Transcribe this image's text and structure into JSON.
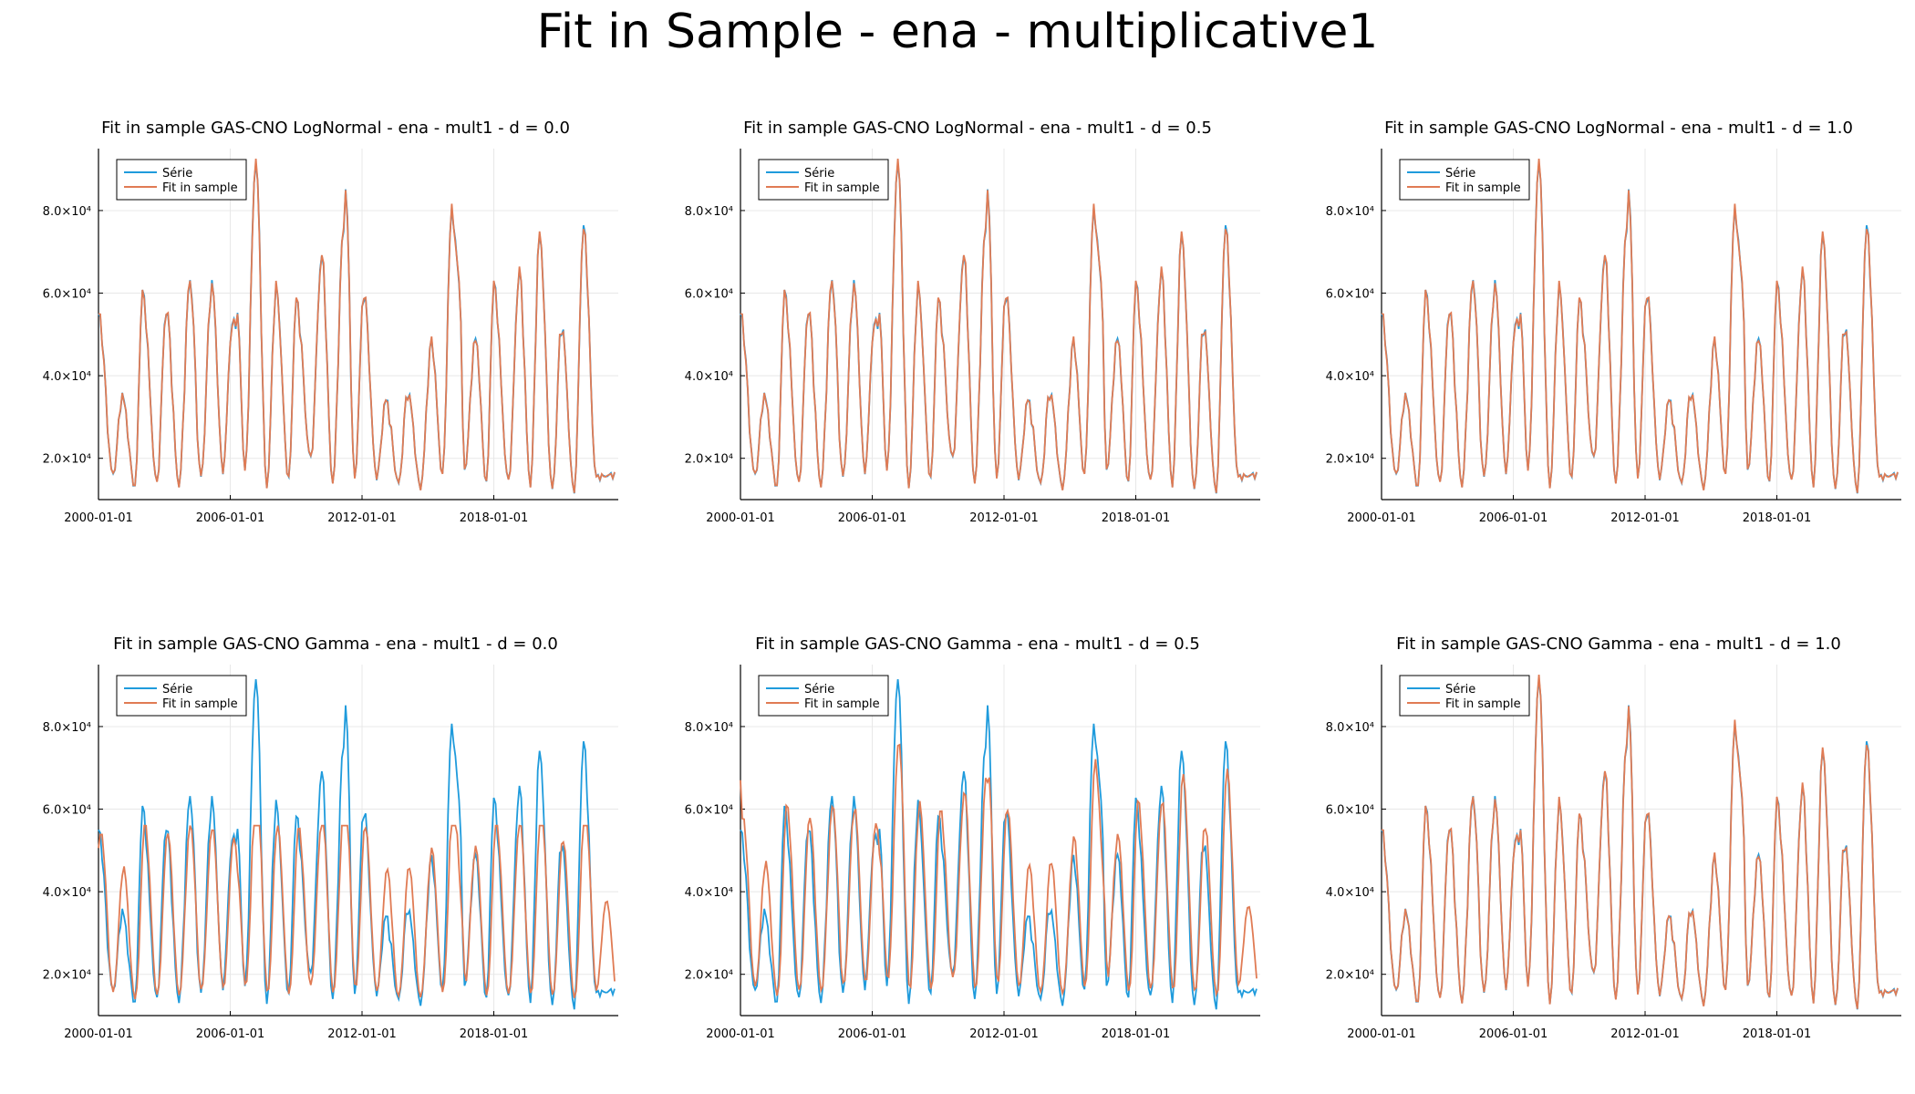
{
  "figure_title": "Fit in Sample - ena - multiplicative1",
  "colors": {
    "serie": "#1f9bdc",
    "fit": "#e07b54",
    "axis": "#000000",
    "grid": "#e8e8e8"
  },
  "chart_data": [
    {
      "type": "line",
      "title": "Fit in sample GAS-CNO LogNormal - ena - mult1 - d = 0.0",
      "legend": {
        "placement": "top-left",
        "entries": [
          "Série",
          "Fit in sample"
        ]
      },
      "xlim": [
        "2000-01-01",
        "2023-09-01"
      ],
      "ylim": [
        10000,
        95000
      ],
      "x_ticks": [
        "2000-01-01",
        "2006-01-01",
        "2012-01-01",
        "2018-01-01"
      ],
      "y_ticks": [
        20000,
        40000,
        60000,
        80000
      ],
      "y_tick_labels": [
        "2.0×10⁴",
        "4.0×10⁴",
        "6.0×10⁴",
        "8.0×10⁴"
      ],
      "grid": true,
      "fit_model": "match"
    },
    {
      "type": "line",
      "title": "Fit in sample GAS-CNO LogNormal - ena - mult1 - d = 0.5",
      "legend": {
        "placement": "top-left",
        "entries": [
          "Série",
          "Fit in sample"
        ]
      },
      "xlim": [
        "2000-01-01",
        "2023-09-01"
      ],
      "ylim": [
        10000,
        95000
      ],
      "x_ticks": [
        "2000-01-01",
        "2006-01-01",
        "2012-01-01",
        "2018-01-01"
      ],
      "y_ticks": [
        20000,
        40000,
        60000,
        80000
      ],
      "y_tick_labels": [
        "2.0×10⁴",
        "4.0×10⁴",
        "6.0×10⁴",
        "8.0×10⁴"
      ],
      "grid": true,
      "fit_model": "match"
    },
    {
      "type": "line",
      "title": "Fit in sample GAS-CNO LogNormal - ena - mult1 - d = 1.0",
      "legend": {
        "placement": "top-left",
        "entries": [
          "Série",
          "Fit in sample"
        ]
      },
      "xlim": [
        "2000-01-01",
        "2023-09-01"
      ],
      "ylim": [
        10000,
        95000
      ],
      "x_ticks": [
        "2000-01-01",
        "2006-01-01",
        "2012-01-01",
        "2018-01-01"
      ],
      "y_ticks": [
        20000,
        40000,
        60000,
        80000
      ],
      "y_tick_labels": [
        "2.0×10⁴",
        "4.0×10⁴",
        "6.0×10⁴",
        "8.0×10⁴"
      ],
      "grid": true,
      "fit_model": "match"
    },
    {
      "type": "line",
      "title": "Fit in sample GAS-CNO Gamma - ena - mult1 - d = 0.0",
      "legend": {
        "placement": "top-left",
        "entries": [
          "Série",
          "Fit in sample"
        ]
      },
      "xlim": [
        "2000-01-01",
        "2023-09-01"
      ],
      "ylim": [
        10000,
        95000
      ],
      "x_ticks": [
        "2000-01-01",
        "2006-01-01",
        "2012-01-01",
        "2018-01-01"
      ],
      "y_ticks": [
        20000,
        40000,
        60000,
        80000
      ],
      "y_tick_labels": [
        "2.0×10⁴",
        "4.0×10⁴",
        "6.0×10⁴",
        "8.0×10⁴"
      ],
      "grid": true,
      "fit_model": "damped"
    },
    {
      "type": "line",
      "title": "Fit in sample GAS-CNO Gamma - ena - mult1 - d = 0.5",
      "legend": {
        "placement": "top-left",
        "entries": [
          "Série",
          "Fit in sample"
        ]
      },
      "xlim": [
        "2000-01-01",
        "2023-09-01"
      ],
      "ylim": [
        10000,
        95000
      ],
      "x_ticks": [
        "2000-01-01",
        "2006-01-01",
        "2012-01-01",
        "2018-01-01"
      ],
      "y_ticks": [
        20000,
        40000,
        60000,
        80000
      ],
      "y_tick_labels": [
        "2.0×10⁴",
        "4.0×10⁴",
        "6.0×10⁴",
        "8.0×10⁴"
      ],
      "grid": true,
      "fit_model": "shifted"
    },
    {
      "type": "line",
      "title": "Fit in sample GAS-CNO Gamma - ena - mult1 - d = 1.0",
      "legend": {
        "placement": "top-left",
        "entries": [
          "Série",
          "Fit in sample"
        ]
      },
      "xlim": [
        "2000-01-01",
        "2023-09-01"
      ],
      "ylim": [
        10000,
        95000
      ],
      "x_ticks": [
        "2000-01-01",
        "2006-01-01",
        "2012-01-01",
        "2018-01-01"
      ],
      "y_ticks": [
        20000,
        40000,
        60000,
        80000
      ],
      "y_tick_labels": [
        "2.0×10⁴",
        "4.0×10⁴",
        "6.0×10⁴",
        "8.0×10⁴"
      ],
      "grid": true,
      "fit_model": "match"
    }
  ],
  "series_data": {
    "start": "2000-01",
    "annual_peaks": [
      [
        "2000-01",
        55000
      ],
      [
        "2001-02",
        35000
      ],
      [
        "2002-01",
        60000
      ],
      [
        "2003-02",
        56000
      ],
      [
        "2004-03",
        63000
      ],
      [
        "2005-03",
        62000
      ],
      [
        "2006-02",
        52000
      ],
      [
        "2006-05",
        54000
      ],
      [
        "2007-03",
        92000
      ],
      [
        "2008-02",
        61000
      ],
      [
        "2009-01",
        58000
      ],
      [
        "2010-03",
        69000
      ],
      [
        "2011-03",
        76000
      ],
      [
        "2011-04",
        85000
      ],
      [
        "2012-02",
        60000
      ],
      [
        "2013-02",
        34000
      ],
      [
        "2014-02",
        36000
      ],
      [
        "2015-03",
        48000
      ],
      [
        "2016-02",
        80000
      ],
      [
        "2016-06",
        64000
      ],
      [
        "2017-03",
        49000
      ],
      [
        "2018-01",
        62000
      ],
      [
        "2019-03",
        65000
      ],
      [
        "2020-02",
        74000
      ],
      [
        "2021-02",
        52000
      ],
      [
        "2022-02",
        76000
      ]
    ],
    "annual_troughs": [
      [
        "2000-09",
        16000
      ],
      [
        "2001-09",
        13000
      ],
      [
        "2002-09",
        14000
      ],
      [
        "2003-09",
        13500
      ],
      [
        "2004-09",
        15500
      ],
      [
        "2005-09",
        17000
      ],
      [
        "2006-09",
        17000
      ],
      [
        "2007-09",
        13000
      ],
      [
        "2008-09",
        15000
      ],
      [
        "2009-09",
        20000
      ],
      [
        "2010-09",
        14000
      ],
      [
        "2011-09",
        15000
      ],
      [
        "2012-09",
        15500
      ],
      [
        "2013-09",
        14000
      ],
      [
        "2014-09",
        13000
      ],
      [
        "2015-09",
        16000
      ],
      [
        "2016-09",
        17000
      ],
      [
        "2017-09",
        14000
      ],
      [
        "2018-09",
        14500
      ],
      [
        "2019-09",
        13500
      ],
      [
        "2020-09",
        12500
      ],
      [
        "2021-09",
        11500
      ],
      [
        "2022-09",
        15500
      ]
    ],
    "end": "2023-07"
  }
}
